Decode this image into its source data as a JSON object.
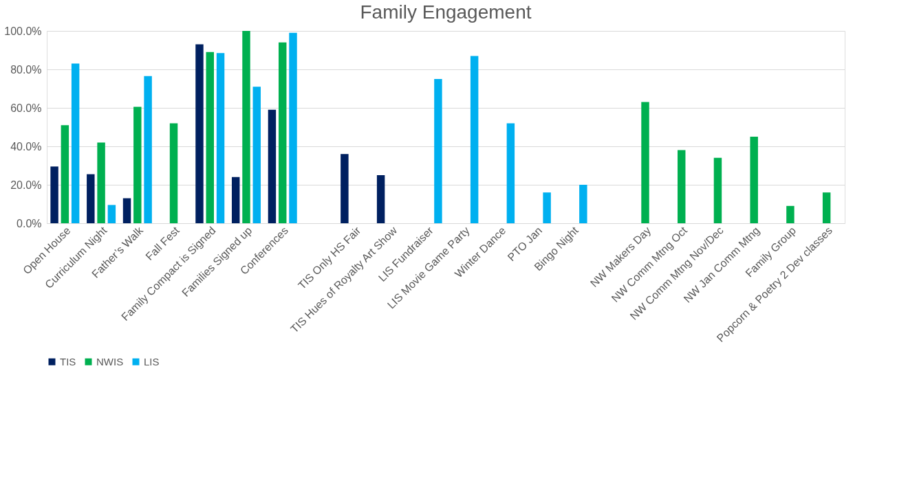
{
  "chart_data": {
    "type": "bar",
    "title": "Family Engagement",
    "categories": [
      "Open House",
      "Curriculum Night",
      "Father’s Walk",
      "Fall Fest",
      "Family Compact is Signed",
      "Families Signed up",
      "Conferences",
      null,
      "TIS Only HS Fair",
      "TIS Hues of Royalty Art Show",
      "LIS Fundraiser",
      "LIS Movie Game Party",
      "Winter Dance",
      "PTO Jan",
      "Bingo Night",
      null,
      "NW Makers Day",
      "NW Comm Mtng Oct",
      "NW Comm Mtng Nov/Dec",
      "NW Jan Comm Mtng",
      "Family Group",
      "Popcorn & Poetry 2 Dev classes"
    ],
    "series": [
      {
        "name": "TIS",
        "color": "#002060",
        "values": [
          29.5,
          25.5,
          13,
          null,
          93,
          24,
          59,
          null,
          36,
          25,
          null,
          null,
          null,
          null,
          null,
          null,
          null,
          null,
          null,
          null,
          null,
          null
        ]
      },
      {
        "name": "NWIS",
        "color": "#00b050",
        "values": [
          51,
          42,
          60.5,
          52,
          89,
          100,
          94,
          null,
          null,
          null,
          null,
          null,
          null,
          null,
          null,
          null,
          63,
          38,
          34,
          45,
          9,
          16
        ]
      },
      {
        "name": "LIS",
        "color": "#00b0f0",
        "values": [
          83,
          9.5,
          76.5,
          null,
          88.5,
          71,
          99,
          null,
          null,
          null,
          75,
          87,
          52,
          16,
          20,
          null,
          null,
          null,
          null,
          null,
          null,
          null
        ]
      }
    ],
    "ylim": [
      0,
      100
    ],
    "yticks": [
      {
        "value": 0,
        "label": "0.0%"
      },
      {
        "value": 20,
        "label": "20.0%"
      },
      {
        "value": 40,
        "label": "40.0%"
      },
      {
        "value": 60,
        "label": "60.0%"
      },
      {
        "value": 80,
        "label": "80.0%"
      },
      {
        "value": 100,
        "label": "100.0%"
      }
    ],
    "grid": "y",
    "legend": "bottom"
  }
}
